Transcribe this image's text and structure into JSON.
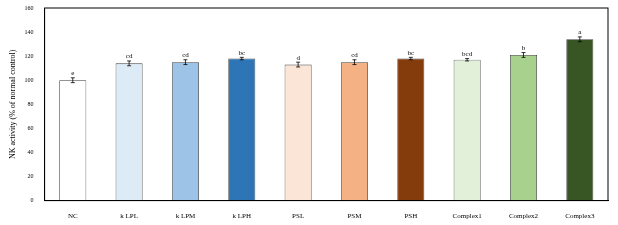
{
  "chart_data": {
    "type": "bar",
    "y_label": "NK activity (% of normal control)",
    "categories": [
      "NC",
      "k LPL",
      "k LPM",
      "k LPH",
      "PSL",
      "PSM",
      "PSH",
      "Complex1",
      "Complex2",
      "Complex3"
    ],
    "values": [
      100,
      114,
      115,
      118,
      113,
      115,
      118,
      117,
      121,
      134
    ],
    "errors": [
      2,
      2,
      2,
      1,
      2,
      2,
      1,
      1,
      2,
      2
    ],
    "letters": [
      "e",
      "cd",
      "cd",
      "bc",
      "d",
      "cd",
      "bc",
      "bcd",
      "b",
      "a"
    ],
    "colors": [
      "#ffffff",
      "#ddebf7",
      "#9dc3e6",
      "#2e75b6",
      "#fbe5d6",
      "#f4b183",
      "#843c0c",
      "#e2f0d9",
      "#a9d18e",
      "#375623"
    ],
    "ylim": [
      0,
      160
    ],
    "yticks": [
      0,
      20,
      40,
      60,
      80,
      100,
      120,
      140,
      160
    ],
    "grid": false
  }
}
